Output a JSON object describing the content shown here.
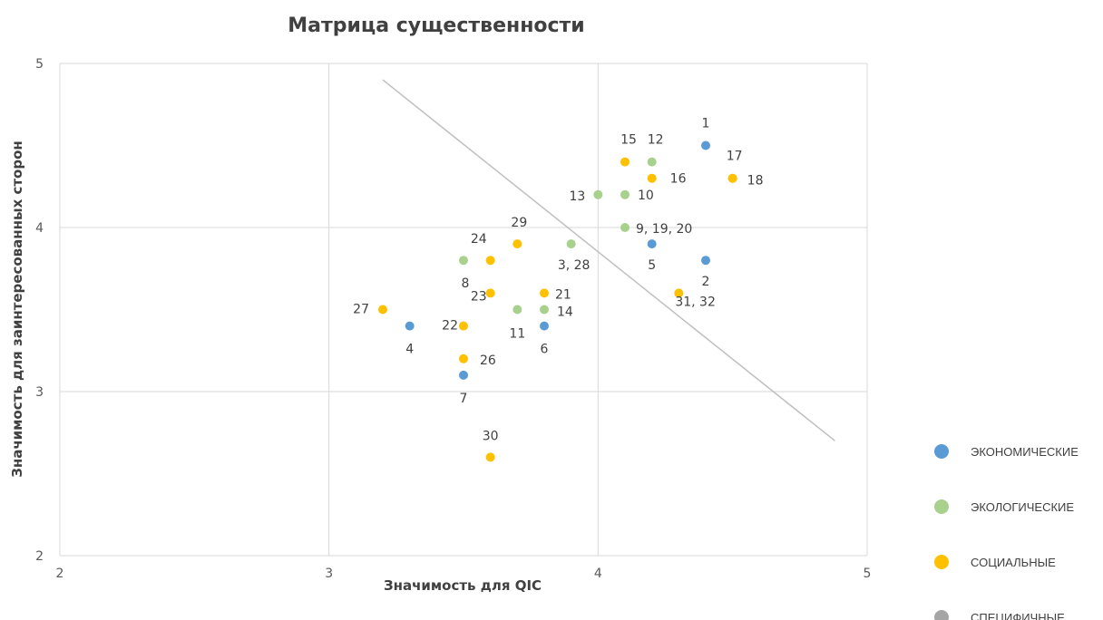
{
  "chart_data": {
    "type": "scatter",
    "title": "Матрица существенности",
    "xlabel": "Значимость для QIC",
    "ylabel": "Значимость для заинтересованных сторон",
    "xlim": [
      2,
      5
    ],
    "ylim": [
      2,
      5
    ],
    "xticks": [
      "2",
      "3",
      "4",
      "5"
    ],
    "yticks": [
      "2",
      "3",
      "4",
      "5"
    ],
    "grid": true,
    "legend_position": "right",
    "categories": [
      {
        "key": "econ",
        "name": "ЭКОНОМИЧЕСКИЕ",
        "color": "#5b9bd5"
      },
      {
        "key": "eco",
        "name": "ЭКОЛОГИЧЕСКИЕ",
        "color": "#a9d18e"
      },
      {
        "key": "soc",
        "name": "СОЦИАЛЬНЫЕ",
        "color": "#ffc000"
      },
      {
        "key": "spec",
        "name": "СПЕЦИФИЧНЫЕ",
        "color": "#a5a5a5"
      }
    ],
    "threshold_line": {
      "x": [
        3.2,
        4.88
      ],
      "y": [
        4.9,
        2.7
      ],
      "color": "#bfbfbf"
    },
    "points": [
      {
        "label": "1",
        "x": 4.4,
        "y": 4.5,
        "cat": "econ"
      },
      {
        "label": "2",
        "x": 4.4,
        "y": 3.8,
        "cat": "econ"
      },
      {
        "label": "3, 28",
        "x": 3.9,
        "y": 3.9,
        "cat": "eco"
      },
      {
        "label": "4",
        "x": 3.3,
        "y": 3.4,
        "cat": "econ"
      },
      {
        "label": "5",
        "x": 4.2,
        "y": 3.9,
        "cat": "econ"
      },
      {
        "label": "6",
        "x": 3.8,
        "y": 3.4,
        "cat": "econ"
      },
      {
        "label": "7",
        "x": 3.5,
        "y": 3.1,
        "cat": "econ"
      },
      {
        "label": "8",
        "x": 3.5,
        "y": 3.8,
        "cat": "eco"
      },
      {
        "label": "9, 19, 20",
        "x": 4.1,
        "y": 4.0,
        "cat": "eco"
      },
      {
        "label": "10",
        "x": 4.1,
        "y": 4.2,
        "cat": "eco"
      },
      {
        "label": "11",
        "x": 3.7,
        "y": 3.5,
        "cat": "eco"
      },
      {
        "label": "12",
        "x": 4.2,
        "y": 4.4,
        "cat": "eco"
      },
      {
        "label": "13",
        "x": 4.0,
        "y": 4.2,
        "cat": "eco"
      },
      {
        "label": "14",
        "x": 3.8,
        "y": 3.5,
        "cat": "eco"
      },
      {
        "label": "15",
        "x": 4.1,
        "y": 4.4,
        "cat": "soc"
      },
      {
        "label": "16",
        "x": 4.2,
        "y": 4.3,
        "cat": "soc"
      },
      {
        "label": "17",
        "x": 4.5,
        "y": 4.3,
        "cat": "soc"
      },
      {
        "label": "18",
        "x": 4.5,
        "y": 4.3,
        "cat": "soc"
      },
      {
        "label": "21",
        "x": 3.8,
        "y": 3.6,
        "cat": "soc"
      },
      {
        "label": "22",
        "x": 3.5,
        "y": 3.4,
        "cat": "soc"
      },
      {
        "label": "23",
        "x": 3.6,
        "y": 3.6,
        "cat": "soc"
      },
      {
        "label": "24",
        "x": 3.6,
        "y": 3.8,
        "cat": "soc"
      },
      {
        "label": "26",
        "x": 3.5,
        "y": 3.2,
        "cat": "soc"
      },
      {
        "label": "27",
        "x": 3.2,
        "y": 3.5,
        "cat": "soc"
      },
      {
        "label": "29",
        "x": 3.7,
        "y": 3.9,
        "cat": "soc"
      },
      {
        "label": "30",
        "x": 3.6,
        "y": 2.6,
        "cat": "soc"
      },
      {
        "label": "31, 32",
        "x": 4.3,
        "y": 3.6,
        "cat": "soc"
      }
    ]
  }
}
